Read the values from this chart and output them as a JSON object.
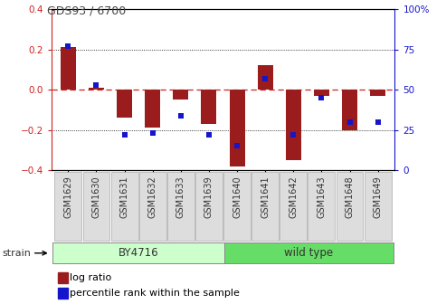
{
  "title": "GDS93 / 6700",
  "samples": [
    "GSM1629",
    "GSM1630",
    "GSM1631",
    "GSM1632",
    "GSM1633",
    "GSM1639",
    "GSM1640",
    "GSM1641",
    "GSM1642",
    "GSM1643",
    "GSM1648",
    "GSM1649"
  ],
  "log_ratio": [
    0.21,
    0.01,
    -0.14,
    -0.19,
    -0.05,
    -0.17,
    -0.38,
    0.12,
    -0.35,
    -0.03,
    -0.2,
    -0.03
  ],
  "percentile": [
    77,
    53,
    22,
    23,
    34,
    22,
    15,
    57,
    22,
    45,
    30,
    30
  ],
  "by4716_count": 6,
  "bar_color": "#9B1C1C",
  "dot_color": "#1515cc",
  "ylim_left": [
    -0.4,
    0.4
  ],
  "ylim_right": [
    0,
    100
  ],
  "yticks_left": [
    -0.4,
    -0.2,
    0.0,
    0.2,
    0.4
  ],
  "yticks_right": [
    0,
    25,
    50,
    75,
    100
  ],
  "zero_line_color": "#cc2222",
  "bg_color": "#ffffff",
  "bar_width": 0.55,
  "strain_label": "strain",
  "legend_log_ratio": "log ratio",
  "legend_percentile": "percentile rank within the sample",
  "by4716_color": "#ccffcc",
  "wildtype_color": "#66dd66",
  "xtick_bg": "#dddddd"
}
